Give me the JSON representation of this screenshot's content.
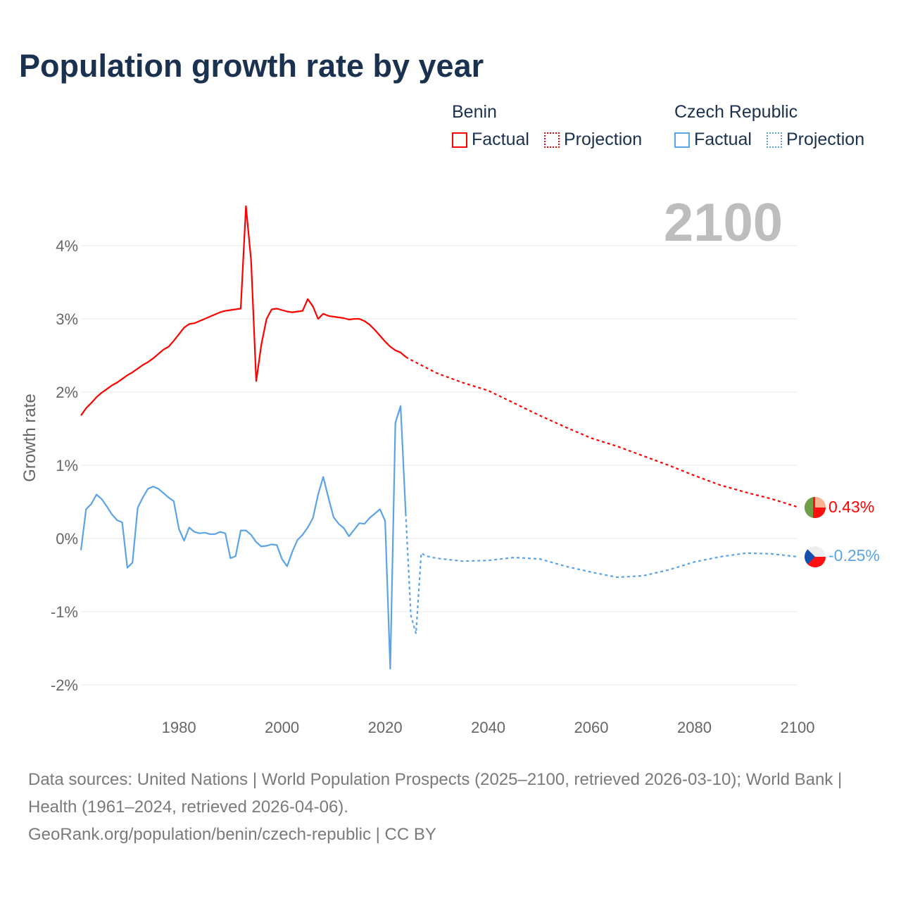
{
  "title": "Population growth rate by year",
  "legend": {
    "groups": [
      {
        "name": "Benin",
        "factual": "Factual",
        "projection": "Projection",
        "color": "#ff0000"
      },
      {
        "name": "Czech Republic",
        "factual": "Factual",
        "projection": "Projection",
        "color": "#5ba3e8"
      }
    ]
  },
  "year_display": "2100",
  "footer": {
    "sources": "Data sources: United Nations | World Population Prospects (2025–2100, retrieved 2026-03-10); World Bank | Health (1961–2024, retrieved 2026-04-06).",
    "credit": "GeoRank.org/population/benin/czech-republic | CC BY"
  },
  "chart_data": {
    "type": "line",
    "title": "Population growth rate by year",
    "xlabel": "",
    "ylabel": "Growth rate",
    "xlim": [
      1961,
      2100
    ],
    "ylim": [
      -2.2,
      4.6
    ],
    "x_ticks": [
      1980,
      2000,
      2020,
      2040,
      2060,
      2080,
      2100
    ],
    "x_tick_labels": [
      "1980",
      "2000",
      "2020",
      "2040",
      "2060",
      "2080",
      "2100"
    ],
    "y_ticks": [
      4,
      3,
      2,
      1,
      0,
      -1,
      -2
    ],
    "y_tick_labels": [
      "4%",
      "3%",
      "2%",
      "1%",
      "0%",
      "-1%",
      "-2%"
    ],
    "grid": true,
    "legend_position": "top-right",
    "series": [
      {
        "name": "Benin",
        "color": "#ff0000",
        "end_label": "0.43%",
        "factual": {
          "x": [
            1961,
            1962,
            1963,
            1964,
            1965,
            1966,
            1967,
            1968,
            1969,
            1970,
            1971,
            1972,
            1973,
            1974,
            1975,
            1976,
            1977,
            1978,
            1979,
            1980,
            1981,
            1982,
            1983,
            1984,
            1985,
            1986,
            1987,
            1988,
            1989,
            1990,
            1991,
            1992,
            1993,
            1994,
            1995,
            1996,
            1997,
            1998,
            1999,
            2000,
            2001,
            2002,
            2003,
            2004,
            2005,
            2006,
            2007,
            2008,
            2009,
            2010,
            2011,
            2012,
            2013,
            2014,
            2015,
            2016,
            2017,
            2018,
            2019,
            2020,
            2021,
            2022,
            2023,
            2024
          ],
          "y": [
            1.68,
            1.78,
            1.85,
            1.93,
            1.99,
            2.04,
            2.09,
            2.13,
            2.18,
            2.23,
            2.27,
            2.32,
            2.37,
            2.41,
            2.46,
            2.52,
            2.58,
            2.62,
            2.7,
            2.79,
            2.88,
            2.93,
            2.94,
            2.97,
            3.0,
            3.03,
            3.06,
            3.09,
            3.11,
            3.12,
            3.13,
            3.14,
            4.54,
            3.8,
            2.15,
            2.65,
            3.0,
            3.13,
            3.14,
            3.12,
            3.1,
            3.09,
            3.1,
            3.11,
            3.27,
            3.17,
            3.0,
            3.07,
            3.04,
            3.03,
            3.02,
            3.01,
            2.99,
            3.0,
            3.0,
            2.97,
            2.92,
            2.85,
            2.77,
            2.69,
            2.62,
            2.57,
            2.54,
            2.48
          ]
        },
        "projection": {
          "x": [
            2024,
            2025,
            2030,
            2035,
            2040,
            2045,
            2050,
            2055,
            2060,
            2065,
            2070,
            2075,
            2080,
            2085,
            2090,
            2095,
            2100
          ],
          "y": [
            2.48,
            2.44,
            2.26,
            2.13,
            2.02,
            1.85,
            1.68,
            1.52,
            1.37,
            1.26,
            1.13,
            1.0,
            0.86,
            0.73,
            0.63,
            0.54,
            0.43
          ]
        }
      },
      {
        "name": "Czech Republic",
        "color": "#5ba3e8",
        "end_label": "-0.25%",
        "factual": {
          "x": [
            1961,
            1962,
            1963,
            1964,
            1965,
            1966,
            1967,
            1968,
            1969,
            1970,
            1971,
            1972,
            1973,
            1974,
            1975,
            1976,
            1977,
            1978,
            1979,
            1980,
            1981,
            1982,
            1983,
            1984,
            1985,
            1986,
            1987,
            1988,
            1989,
            1990,
            1991,
            1992,
            1993,
            1994,
            1995,
            1996,
            1997,
            1998,
            1999,
            2000,
            2001,
            2002,
            2003,
            2004,
            2005,
            2006,
            2007,
            2008,
            2009,
            2010,
            2011,
            2012,
            2013,
            2014,
            2015,
            2016,
            2017,
            2018,
            2019,
            2020,
            2021,
            2022,
            2023,
            2024
          ],
          "y": [
            -0.16,
            0.4,
            0.47,
            0.6,
            0.54,
            0.44,
            0.33,
            0.25,
            0.22,
            -0.4,
            -0.33,
            0.42,
            0.56,
            0.68,
            0.71,
            0.68,
            0.62,
            0.56,
            0.51,
            0.13,
            -0.03,
            0.15,
            0.09,
            0.07,
            0.08,
            0.06,
            0.06,
            0.09,
            0.07,
            -0.27,
            -0.24,
            0.11,
            0.11,
            0.05,
            -0.05,
            -0.11,
            -0.1,
            -0.08,
            -0.09,
            -0.28,
            -0.38,
            -0.18,
            -0.02,
            0.05,
            0.15,
            0.28,
            0.6,
            0.84,
            0.56,
            0.29,
            0.2,
            0.14,
            0.03,
            0.12,
            0.21,
            0.2,
            0.28,
            0.34,
            0.4,
            0.24,
            -1.78,
            1.58,
            1.81,
            0.34
          ]
        },
        "projection": {
          "x": [
            2024,
            2025,
            2026,
            2027,
            2028,
            2030,
            2035,
            2040,
            2045,
            2050,
            2055,
            2060,
            2065,
            2070,
            2075,
            2080,
            2085,
            2090,
            2095,
            2100
          ],
          "y": [
            0.34,
            -1.05,
            -1.3,
            -0.2,
            -0.24,
            -0.27,
            -0.31,
            -0.3,
            -0.26,
            -0.28,
            -0.38,
            -0.46,
            -0.53,
            -0.51,
            -0.43,
            -0.32,
            -0.25,
            -0.2,
            -0.21,
            -0.25
          ]
        }
      }
    ]
  }
}
